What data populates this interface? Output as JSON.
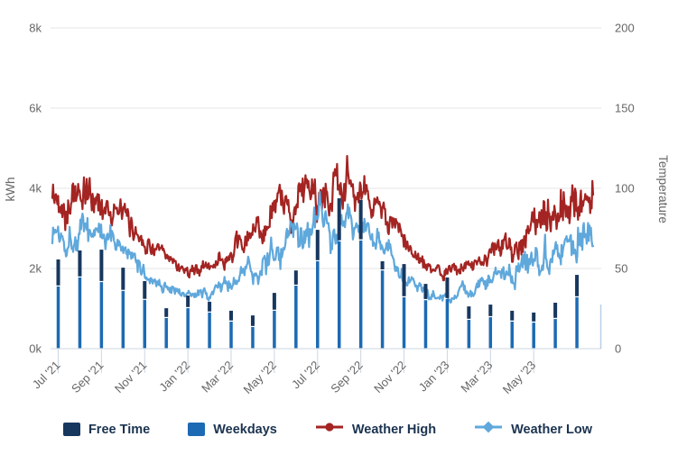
{
  "chart_data": {
    "type": "mixed",
    "subtype": "stacked columns (kWh, monthly) + daily temperature lines",
    "title": "",
    "x_months": [
      "Jul '21",
      "Aug '21",
      "Sep '21",
      "Oct '21",
      "Nov '21",
      "Dec '21",
      "Jan '22",
      "Feb '22",
      "Mar '22",
      "Apr '22",
      "May '22",
      "Jun '22",
      "Jul '22",
      "Aug '22",
      "Sep '22",
      "Oct '22",
      "Nov '22",
      "Dec '22",
      "Jan '23",
      "Feb '23",
      "Mar '23",
      "Apr '23",
      "May '23",
      "Jun '23",
      "Jul '23"
    ],
    "x_tick_labels": [
      "Jul '21",
      "Sep '21",
      "Nov '21",
      "Jan '22",
      "Mar '22",
      "May '22",
      "Jul '22",
      "Sep '22",
      "Nov '22",
      "Jan '23",
      "Mar '23",
      "May '23"
    ],
    "left_axis": {
      "label": "kWh",
      "ticks": [
        "0k",
        "2k",
        "4k",
        "6k",
        "8k"
      ],
      "range": [
        0,
        8000
      ]
    },
    "right_axis": {
      "label": "Temperature",
      "ticks": [
        "0",
        "50",
        "100",
        "150",
        "200"
      ],
      "range": [
        0,
        200
      ]
    },
    "grid": "horizontal only",
    "legend_position": "bottom center",
    "series": [
      {
        "name": "Free Time",
        "type": "column",
        "stack": "energy",
        "color": "#17375e",
        "values": [
          675,
          675,
          810,
          580,
          470,
          245,
          315,
          270,
          270,
          290,
          445,
          380,
          785,
          1075,
          1010,
          230,
          830,
          405,
          540,
          335,
          315,
          270,
          250,
          405,
          560
        ]
      },
      {
        "name": "Weekdays",
        "type": "column",
        "stack": "energy",
        "color": "#1c6ab3",
        "values": [
          1550,
          1775,
          1660,
          1440,
          1215,
          765,
          1010,
          900,
          675,
          540,
          945,
          1570,
          2180,
          2675,
          2700,
          1950,
          1280,
          1210,
          1235,
          720,
          785,
          675,
          650,
          740,
          1280
        ]
      },
      {
        "name": "Weather High",
        "type": "line",
        "axis": "temperature",
        "color": "#a32422",
        "marker": "circle",
        "resolution": "daily (noisy); monthly means listed",
        "monthly_means": [
          93,
          95,
          90,
          78,
          65,
          54,
          48,
          53,
          62,
          72,
          85,
          95,
          102,
          103,
          95,
          78,
          60,
          46,
          50,
          55,
          62,
          70,
          79,
          88,
          96
        ]
      },
      {
        "name": "Weather Low",
        "type": "line",
        "axis": "temperature",
        "color": "#5fa8dc",
        "marker": "diamond",
        "resolution": "daily (noisy); monthly means listed",
        "monthly_means": [
          73,
          74,
          70,
          57,
          45,
          37,
          33,
          36,
          43,
          51,
          62,
          71,
          77,
          78,
          71,
          59,
          43,
          32,
          34,
          38,
          45,
          52,
          60,
          68,
          76
        ]
      }
    ],
    "style": {
      "gridline_color": "#e6e6e6",
      "axis_text_color": "#666666",
      "legend_text_color": "#1b3350",
      "tick_mark_color": "#ccd6e2",
      "plot_border_color": "#b9cfe3"
    }
  }
}
